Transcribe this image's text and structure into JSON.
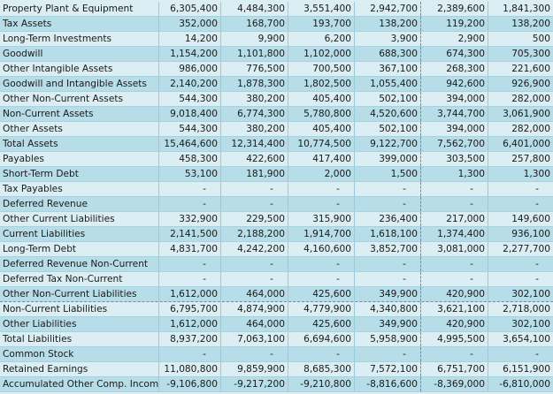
{
  "sheet": {
    "colors": {
      "light_row": "#daeef3",
      "dark_row": "#b7dde8"
    },
    "rows": [
      {
        "label": "Property Plant & Equipment",
        "values": [
          "6,305,400",
          "4,484,300",
          "3,551,400",
          "2,942,700",
          "2,389,600",
          "1,841,300"
        ]
      },
      {
        "label": "Tax Assets",
        "values": [
          "352,000",
          "168,700",
          "193,700",
          "138,200",
          "119,200",
          "138,200"
        ]
      },
      {
        "label": "Long-Term Investments",
        "values": [
          "14,200",
          "9,900",
          "6,200",
          "3,900",
          "2,900",
          "500"
        ]
      },
      {
        "label": "Goodwill",
        "values": [
          "1,154,200",
          "1,101,800",
          "1,102,000",
          "688,300",
          "674,300",
          "705,300"
        ]
      },
      {
        "label": "Other Intangible Assets",
        "values": [
          "986,000",
          "776,500",
          "700,500",
          "367,100",
          "268,300",
          "221,600"
        ]
      },
      {
        "label": "Goodwill and Intangible Assets",
        "values": [
          "2,140,200",
          "1,878,300",
          "1,802,500",
          "1,055,400",
          "942,600",
          "926,900"
        ]
      },
      {
        "label": "Other Non-Current Assets",
        "values": [
          "544,300",
          "380,200",
          "405,400",
          "502,100",
          "394,000",
          "282,000"
        ]
      },
      {
        "label": "Non-Current Assets",
        "values": [
          "9,018,400",
          "6,774,300",
          "5,780,800",
          "4,520,600",
          "3,744,700",
          "3,061,900"
        ]
      },
      {
        "label": "Other Assets",
        "values": [
          "544,300",
          "380,200",
          "405,400",
          "502,100",
          "394,000",
          "282,000"
        ]
      },
      {
        "label": "Total Assets",
        "values": [
          "15,464,600",
          "12,314,400",
          "10,774,500",
          "9,122,700",
          "7,562,700",
          "6,401,000"
        ]
      },
      {
        "label": "Payables",
        "values": [
          "458,300",
          "422,600",
          "417,400",
          "399,000",
          "303,500",
          "257,800"
        ]
      },
      {
        "label": "Short-Term Debt",
        "values": [
          "53,100",
          "181,900",
          "2,000",
          "1,500",
          "1,300",
          "1,300"
        ]
      },
      {
        "label": "Tax Payables",
        "values": [
          "-",
          "-",
          "-",
          "-",
          "-",
          "-"
        ]
      },
      {
        "label": "Deferred Revenue",
        "values": [
          "-",
          "-",
          "-",
          "-",
          "-",
          "-"
        ]
      },
      {
        "label": "Other Current Liabilities",
        "values": [
          "332,900",
          "229,500",
          "315,900",
          "236,400",
          "217,000",
          "149,600"
        ]
      },
      {
        "label": "Current Liabilities",
        "values": [
          "2,141,500",
          "2,188,200",
          "1,914,700",
          "1,618,100",
          "1,374,400",
          "936,100"
        ]
      },
      {
        "label": "Long-Term Debt",
        "values": [
          "4,831,700",
          "4,242,200",
          "4,160,600",
          "3,852,700",
          "3,081,000",
          "2,277,700"
        ]
      },
      {
        "label": "Deferred Revenue Non-Current",
        "values": [
          "-",
          "-",
          "-",
          "-",
          "-",
          "-"
        ]
      },
      {
        "label": "Deferred Tax Non-Current",
        "values": [
          "-",
          "-",
          "-",
          "-",
          "-",
          "-"
        ]
      },
      {
        "label": "Other Non-Current Liabilities",
        "values": [
          "1,612,000",
          "464,000",
          "425,600",
          "349,900",
          "420,900",
          "302,100"
        ]
      },
      {
        "label": "Non-Current Liabilities",
        "values": [
          "6,795,700",
          "4,874,900",
          "4,779,900",
          "4,340,800",
          "3,621,100",
          "2,718,000"
        ]
      },
      {
        "label": "Other Liabilities",
        "values": [
          "1,612,000",
          "464,000",
          "425,600",
          "349,900",
          "420,900",
          "302,100"
        ]
      },
      {
        "label": "Total Liabilities",
        "values": [
          "8,937,200",
          "7,063,100",
          "6,694,600",
          "5,958,900",
          "4,995,500",
          "3,654,100"
        ]
      },
      {
        "label": "Common Stock",
        "values": [
          "-",
          "-",
          "-",
          "-",
          "-",
          "-"
        ]
      },
      {
        "label": "Retained Earnings",
        "values": [
          "11,080,800",
          "9,859,900",
          "8,685,300",
          "7,572,100",
          "6,751,700",
          "6,151,900"
        ]
      },
      {
        "label": "Accumulated Other Comp. Incom",
        "values": [
          "-9,106,800",
          "-9,217,200",
          "-9,210,800",
          "-8,816,600",
          "-8,369,000",
          "-6,810,000"
        ]
      }
    ]
  }
}
